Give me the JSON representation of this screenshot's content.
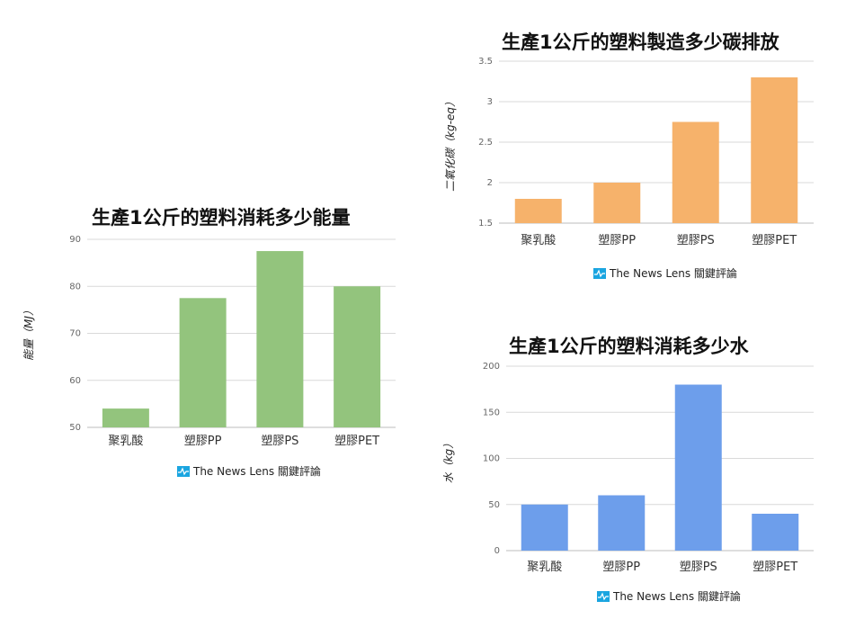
{
  "chart_data": [
    {
      "type": "bar",
      "title": "生產1公斤的塑料消耗多少能量",
      "ylabel": "能量（MJ）",
      "categories": [
        "聚乳酸",
        "塑膠PP",
        "塑膠PS",
        "塑膠PET"
      ],
      "values": [
        54,
        77.5,
        87.5,
        80
      ],
      "ylim": [
        50,
        90
      ],
      "yticks": [
        "90",
        "80",
        "70",
        "60",
        "50"
      ],
      "color": "#93c47d",
      "grid": true,
      "source": "The News Lens 關鍵評論"
    },
    {
      "type": "bar",
      "title": "生產1公斤的塑料製造多少碳排放",
      "ylabel": "二氧化碳（kg-eq）",
      "categories": [
        "聚乳酸",
        "塑膠PP",
        "塑膠PS",
        "塑膠PET"
      ],
      "values": [
        1.8,
        2.0,
        2.75,
        3.3
      ],
      "ylim": [
        1.5,
        3.5
      ],
      "yticks": [
        "3.5",
        "3",
        "2.5",
        "2",
        "1.5"
      ],
      "color": "#f6b26b",
      "grid": true,
      "source": "The News Lens 關鍵評論"
    },
    {
      "type": "bar",
      "title": "生產1公斤的塑料消耗多少水",
      "ylabel": "水（kg）",
      "categories": [
        "聚乳酸",
        "塑膠PP",
        "塑膠PS",
        "塑膠PET"
      ],
      "values": [
        50,
        60,
        180,
        40
      ],
      "ylim": [
        0,
        200
      ],
      "yticks": [
        "200",
        "150",
        "100",
        "50",
        "0"
      ],
      "color": "#6d9eeb",
      "grid": true,
      "source": "The News Lens 關鍵評論"
    }
  ]
}
